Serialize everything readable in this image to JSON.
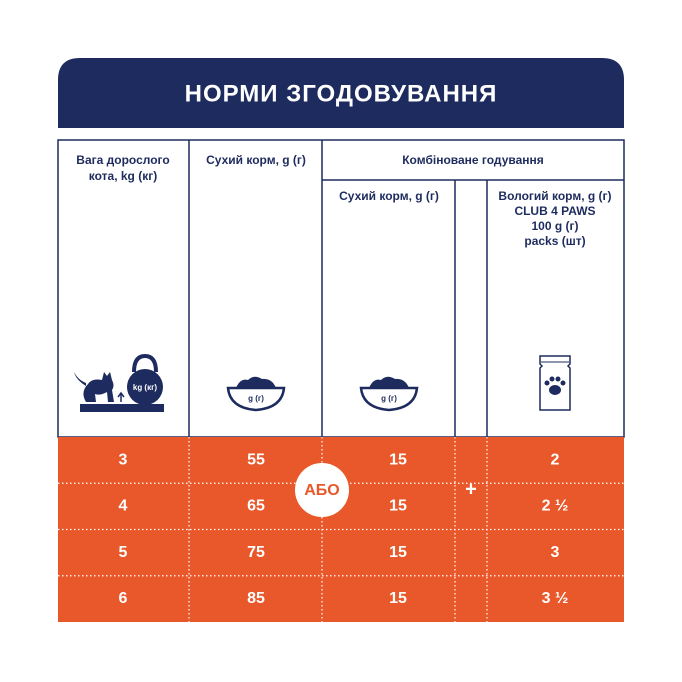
{
  "header": {
    "title": "НОРМИ ЗГОДОВУВАННЯ"
  },
  "table": {
    "columns": [
      {
        "lines": [
          "Вага дорослого",
          "кота, kg (кг)"
        ],
        "icon_label": "kg (кг)"
      },
      {
        "lines": [
          "Сухий корм, g (г)"
        ],
        "icon_label": "g (г)"
      }
    ],
    "group": {
      "title": "Комбіноване годування",
      "columns": [
        {
          "lines": [
            "Сухий корм, g (г)"
          ],
          "icon_label": "g (г)"
        },
        {
          "lines": [
            "Вологий корм, g (г)",
            "CLUB 4 PAWS",
            "100 g (г)",
            "packs (шт)"
          ]
        }
      ]
    },
    "or_label": "АБО",
    "plus_label": "+",
    "rows": [
      [
        "3",
        "55",
        "15",
        "2"
      ],
      [
        "4",
        "65",
        "15",
        "2 ½"
      ],
      [
        "5",
        "75",
        "15",
        "3"
      ],
      [
        "6",
        "85",
        "15",
        "3 ½"
      ]
    ]
  }
}
